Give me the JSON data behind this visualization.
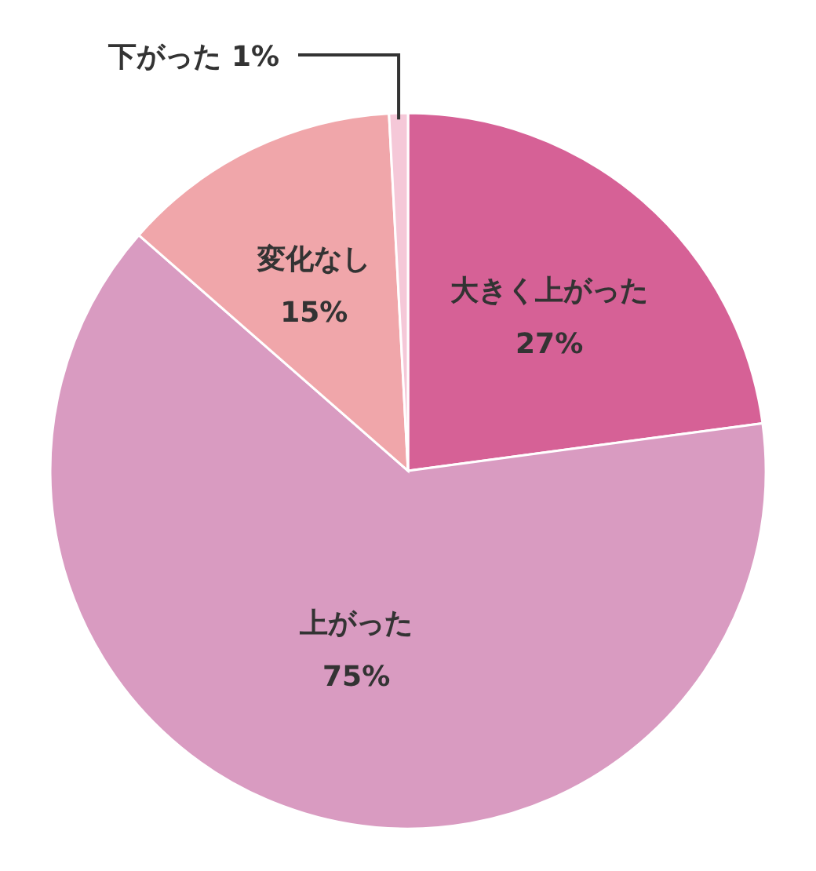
{
  "chart_data": {
    "type": "pie",
    "categories": [
      "大きく上がった",
      "上がった",
      "変化なし",
      "下がった"
    ],
    "values": [
      27,
      75,
      15,
      1
    ],
    "value_labels": [
      "27%",
      "75%",
      "15%",
      "1%"
    ],
    "colors": [
      "#d66196",
      "#d99bc1",
      "#f0a6aa",
      "#f5c8d8"
    ]
  }
}
